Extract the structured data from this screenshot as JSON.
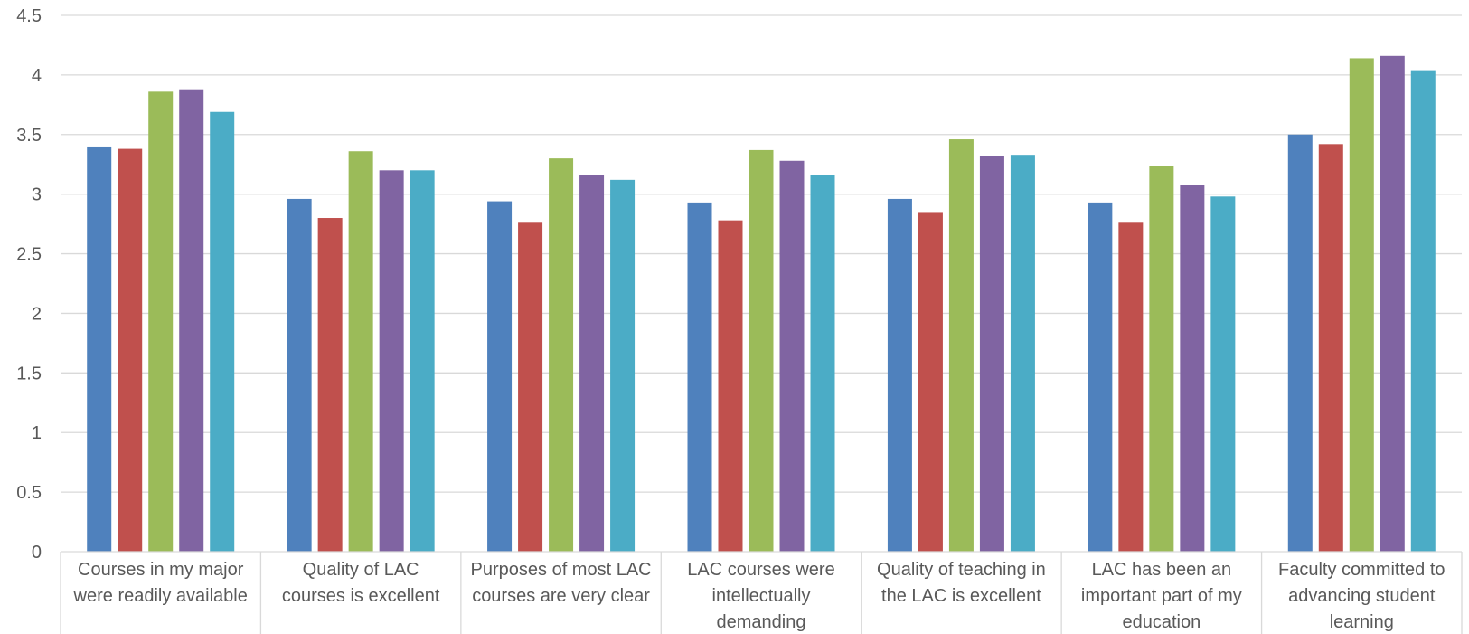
{
  "chart_data": {
    "type": "bar",
    "categories": [
      [
        "Courses in my major",
        "were readily available"
      ],
      [
        "Quality of  LAC",
        "courses is excellent"
      ],
      [
        "Purposes of most LAC",
        "courses are very clear"
      ],
      [
        "LAC courses were",
        "intellectually",
        "demanding"
      ],
      [
        "Quality of teaching in",
        "the LAC is excellent"
      ],
      [
        "LAC has been an",
        "important part of my",
        "education"
      ],
      [
        "Faculty committed to",
        "advancing student",
        "learning"
      ]
    ],
    "series": [
      {
        "color": "#4f81bd",
        "values": [
          3.4,
          2.96,
          2.94,
          2.93,
          2.96,
          2.93,
          3.5
        ]
      },
      {
        "color": "#c0504d",
        "values": [
          3.38,
          2.8,
          2.76,
          2.78,
          2.85,
          2.76,
          3.42
        ]
      },
      {
        "color": "#9bbb59",
        "values": [
          3.86,
          3.36,
          3.3,
          3.37,
          3.46,
          3.24,
          4.14
        ]
      },
      {
        "color": "#8064a2",
        "values": [
          3.88,
          3.2,
          3.16,
          3.28,
          3.32,
          3.08,
          4.16
        ]
      },
      {
        "color": "#4bacc6",
        "values": [
          3.69,
          3.2,
          3.12,
          3.16,
          3.33,
          2.98,
          4.04
        ]
      }
    ],
    "yticks": [
      "0",
      "0.5",
      "1",
      "1.5",
      "2",
      "2.5",
      "3",
      "3.5",
      "4",
      "4.5"
    ],
    "ylim": [
      0,
      4.5
    ],
    "grid": true,
    "legend": "none",
    "title": "",
    "xlabel": "",
    "ylabel": ""
  }
}
